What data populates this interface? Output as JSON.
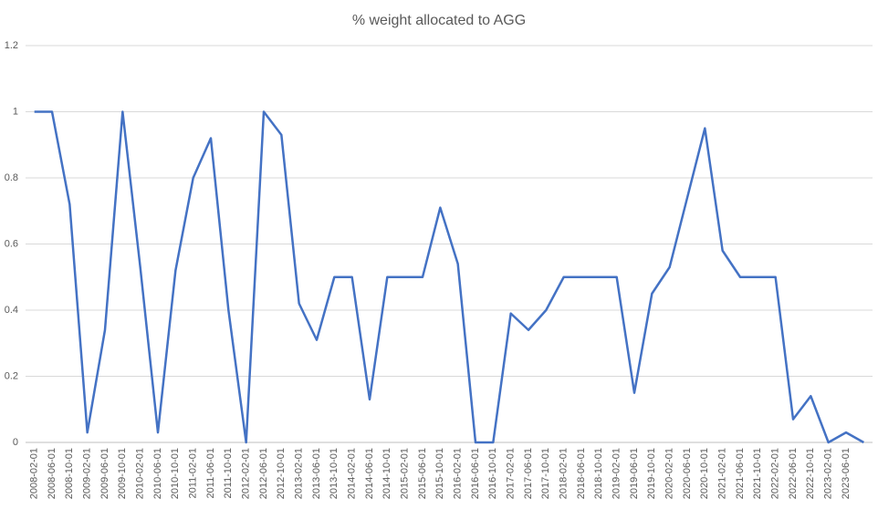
{
  "chart_data": {
    "type": "line",
    "title": "% weight allocated to AGG",
    "categories": [
      "2008-02-01",
      "2008-06-01",
      "2008-10-01",
      "2009-02-01",
      "2009-06-01",
      "2009-10-01",
      "2010-02-01",
      "2010-06-01",
      "2010-10-01",
      "2011-02-01",
      "2011-06-01",
      "2011-10-01",
      "2012-02-01",
      "2012-06-01",
      "2012-10-01",
      "2013-02-01",
      "2013-06-01",
      "2013-10-01",
      "2014-02-01",
      "2014-06-01",
      "2014-10-01",
      "2015-02-01",
      "2015-06-01",
      "2015-10-01",
      "2016-02-01",
      "2016-06-01",
      "2016-10-01",
      "2017-02-01",
      "2017-06-01",
      "2017-10-01",
      "2018-02-01",
      "2018-06-01",
      "2018-10-01",
      "2019-02-01",
      "2019-06-01",
      "2019-10-01",
      "2020-02-01",
      "2020-06-01",
      "2020-10-01",
      "2021-02-01",
      "2021-06-01",
      "2021-10-01",
      "2022-02-01",
      "2022-06-01",
      "2022-10-01",
      "2023-02-01",
      "2023-06-01",
      null
    ],
    "values": [
      1,
      1,
      0.72,
      0.03,
      0.34,
      1.0,
      0.53,
      0.03,
      0.52,
      0.8,
      0.92,
      0.4,
      0,
      1.0,
      0.93,
      0.42,
      0.31,
      0.5,
      0.5,
      0.13,
      0.5,
      0.5,
      0.5,
      0.71,
      0.54,
      0,
      0,
      0.39,
      0.34,
      0.4,
      0.5,
      0.5,
      0.5,
      0.5,
      0.15,
      0.45,
      0.53,
      0.74,
      0.95,
      0.58,
      0.5,
      0.5,
      0.5,
      0.07,
      0.14,
      0,
      0.03,
      0
    ],
    "color": "#4472c4",
    "ylim": [
      0,
      1.2
    ],
    "yticks": [
      0,
      0.2,
      0.4,
      0.6,
      0.8,
      1,
      1.2
    ],
    "grid": true
  }
}
